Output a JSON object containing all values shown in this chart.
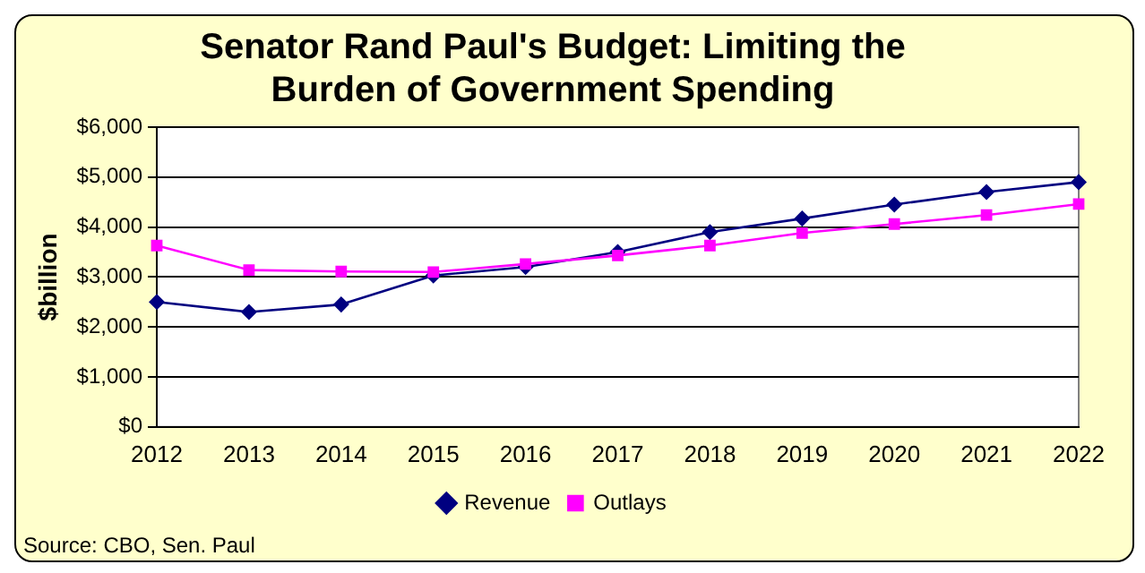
{
  "chart_data": {
    "type": "line",
    "title": [
      "Senator Rand Paul's Budget: Limiting the",
      "Burden of Government Spending"
    ],
    "ylabel": "$billion",
    "categories": [
      "2012",
      "2013",
      "2014",
      "2015",
      "2016",
      "2017",
      "2018",
      "2019",
      "2020",
      "2021",
      "2022"
    ],
    "series": [
      {
        "name": "Revenue",
        "color": "#000080",
        "marker": "diamond",
        "values": [
          2500,
          2300,
          2450,
          3030,
          3200,
          3500,
          3900,
          4170,
          4450,
          4700,
          4900
        ]
      },
      {
        "name": "Outlays",
        "color": "#ff00ff",
        "marker": "square",
        "values": [
          3630,
          3140,
          3110,
          3100,
          3260,
          3430,
          3630,
          3880,
          4060,
          4240,
          4460
        ]
      }
    ],
    "ylim": [
      0,
      6000
    ],
    "yticks": [
      {
        "value": 0,
        "label": "$0"
      },
      {
        "value": 1000,
        "label": "$1,000"
      },
      {
        "value": 2000,
        "label": "$2,000"
      },
      {
        "value": 3000,
        "label": "$3,000"
      },
      {
        "value": 4000,
        "label": "$4,000"
      },
      {
        "value": 5000,
        "label": "$5,000"
      },
      {
        "value": 6000,
        "label": "$6,000"
      }
    ],
    "grid": "y",
    "legend": "bottom",
    "annotations": [
      "Source: CBO, Sen. Paul"
    ]
  }
}
